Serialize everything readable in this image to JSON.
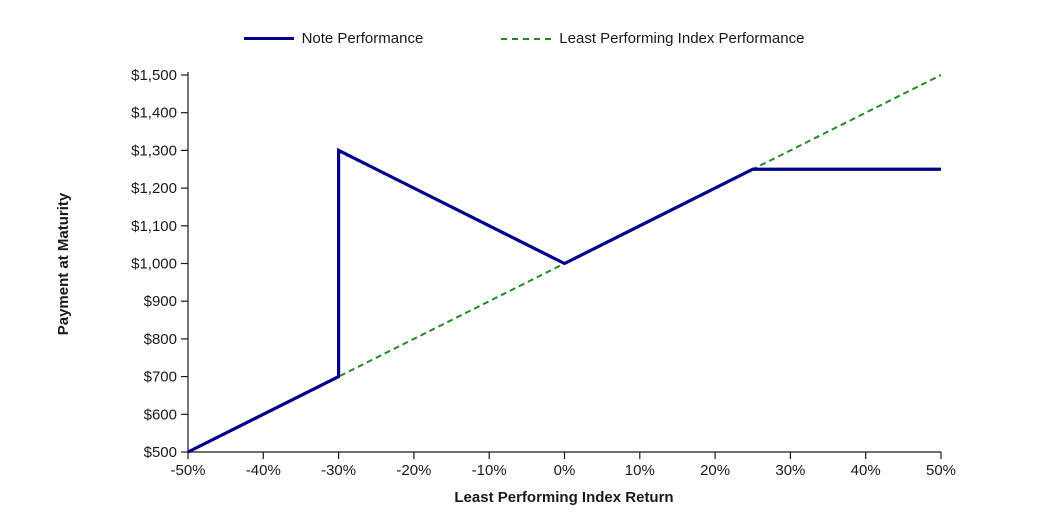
{
  "legend": {
    "items": [
      {
        "label": "Note Performance",
        "color": "#00008B",
        "line_style": "solid"
      },
      {
        "label": "Least Performing Index Performance",
        "color": "#228B22",
        "line_style": "dashed"
      }
    ]
  },
  "chart_data": {
    "type": "line",
    "title": "",
    "xlabel": "Least Performing Index Return",
    "ylabel": "Payment at Maturity",
    "xlim": [
      -50,
      50
    ],
    "ylim": [
      500,
      1500
    ],
    "x_ticks": [
      -50,
      -40,
      -30,
      -20,
      -10,
      0,
      10,
      20,
      30,
      40,
      50
    ],
    "x_tick_labels": [
      "-50%",
      "-40%",
      "-30%",
      "-20%",
      "-10%",
      "0%",
      "10%",
      "20%",
      "30%",
      "40%",
      "50%"
    ],
    "y_ticks": [
      500,
      600,
      700,
      800,
      900,
      1000,
      1100,
      1200,
      1300,
      1400,
      1500
    ],
    "y_tick_labels": [
      "$500",
      "$600",
      "$700",
      "$800",
      "$900",
      "$1,000",
      "$1,100",
      "$1,200",
      "$1,300",
      "$1,400",
      "$1,500"
    ],
    "grid": false,
    "legend_position": "top",
    "background": "#FFFFFF",
    "axis_color": "#1a1a1a",
    "series": [
      {
        "name": "Least Performing Index Performance",
        "color": "#228B22",
        "style": "dashed",
        "width": 2,
        "points": [
          [
            -50,
            500
          ],
          [
            50,
            1500
          ]
        ]
      },
      {
        "name": "Note Performance",
        "color": "#00008B",
        "style": "solid",
        "width": 3.2,
        "points": [
          [
            -50,
            500
          ],
          [
            -30,
            700
          ],
          [
            -30,
            1300
          ],
          [
            0,
            1000
          ],
          [
            25,
            1250
          ],
          [
            50,
            1250
          ]
        ]
      }
    ]
  }
}
